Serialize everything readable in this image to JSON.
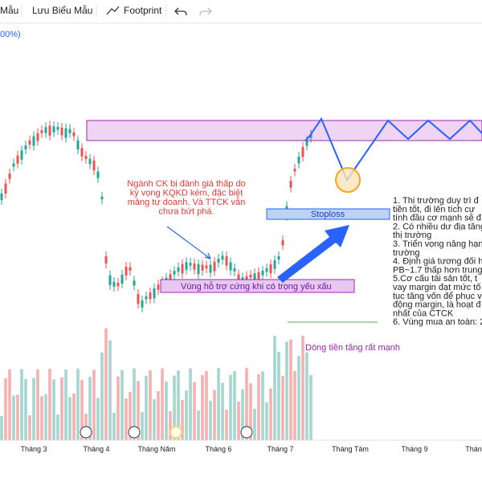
{
  "toolbar": {
    "items": [
      "Mẫu",
      "Lưu Biểu Mẫu",
      "Footprint"
    ]
  },
  "legend_fragment": "00%)",
  "annotations": {
    "note": [
      "Ngành CK bị đánh giá thấp do",
      "kỳ vọng KQKD kém, đặc biệt",
      "mảng tự doanh. Và TTCK vẫn",
      "chưa bứt phá."
    ],
    "stoploss": "Stoploss",
    "support": "Vùng hỗ trợ cứng khi có trọng yếu xấu",
    "cash_flow": "Dòng tiền tăng rất mạnh",
    "thesis": [
      "1. Thị trường duy trì đ",
      "tiền tốt, đi lên tích cự",
      "tính đầu cơ mạnh sẽ đ",
      "2. Có nhiều dư địa tăng",
      "thị trường",
      "3. Triển vọng nâng hạn",
      "trường",
      "4. Định giá tương đối h",
      "PB~1.7 thấp hơn trung",
      "5.Cơ cấu tài sản tốt, t",
      "vay margin đạt mức tố",
      "tục tăng vốn để phục v",
      "động margin, là hoạt đ",
      "nhất của CTCK",
      "6. Vùng mua an toàn: 2"
    ]
  },
  "x_axis": [
    "Tháng 3",
    "Tháng 4",
    "Tháng Năm",
    "Tháng 6",
    "Tháng 7",
    "Tháng Tám",
    "Tháng 9",
    "Tháng"
  ]
}
